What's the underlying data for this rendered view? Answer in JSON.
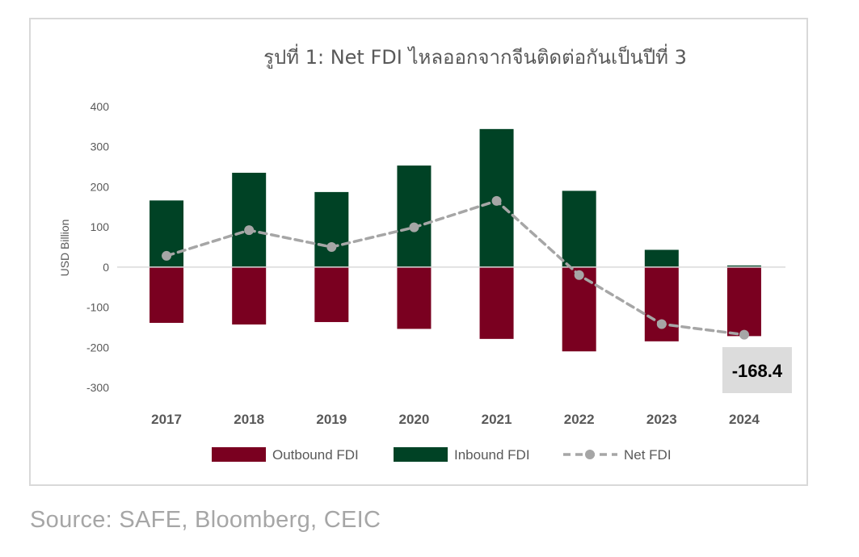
{
  "source_text": "Source: SAFE, Bloomberg, CEIC",
  "colors": {
    "outbound": "#7a0020",
    "inbound": "#004225",
    "net": "#a6a6a6",
    "callout_bg": "#dcdcdc",
    "axis_text": "#595959"
  },
  "chart_data": {
    "type": "bar",
    "title": "รูปที่ 1: Net FDI ไหลออกจากจีนติดต่อกันเป็นปีที่ 3",
    "ylabel": "USD Billion",
    "xlabel": "",
    "ylim": [
      -300,
      400
    ],
    "yticks": [
      400,
      300,
      200,
      100,
      0,
      -100,
      -200,
      -300
    ],
    "categories": [
      "2017",
      "2018",
      "2019",
      "2020",
      "2021",
      "2022",
      "2023",
      "2024"
    ],
    "series": [
      {
        "name": "Outbound FDI",
        "kind": "bar",
        "values": [
          -139,
          -143,
          -137,
          -154,
          -179,
          -210,
          -185,
          -172
        ]
      },
      {
        "name": "Inbound FDI",
        "kind": "bar",
        "values": [
          166,
          235,
          187,
          253,
          344,
          190,
          43,
          4
        ]
      },
      {
        "name": "Net FDI",
        "kind": "line",
        "style": "dashed",
        "values": [
          28,
          92,
          50,
          99,
          165,
          -20,
          -142,
          -168.4
        ]
      }
    ],
    "legend_position": "bottom",
    "grid": false,
    "annotations": [
      {
        "category": "2024",
        "text": "-168.4"
      }
    ]
  }
}
